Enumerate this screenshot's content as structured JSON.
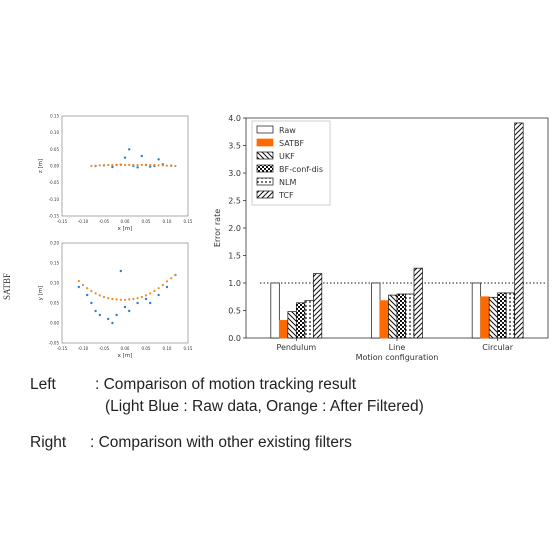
{
  "side_label": "SATBF",
  "captions": {
    "left_key": "Left",
    "left_line1": ": Comparison of motion tracking result",
    "left_line2": "(Light Blue : Raw data, Orange : After Filtered)",
    "right_key": "Right",
    "right_line1": ": Comparison with other existing filters"
  },
  "colors": {
    "raw_points": "#2a7fd4",
    "filtered_points": "#f08a1c",
    "satbf_bar": "#ff6a00"
  },
  "chart_data": [
    {
      "type": "scatter",
      "xlabel": "x [m]",
      "ylabel": "z [m]",
      "xlim": [
        -0.15,
        0.15
      ],
      "ylim": [
        -0.15,
        0.15
      ],
      "xticks": [
        "-0.15",
        "-0.10",
        "-0.05",
        "0.00",
        "0.05",
        "0.10",
        "0.15"
      ],
      "yticks": [
        "0.15",
        "0.10",
        "0.05",
        "0.00",
        "-0.05",
        "-0.10",
        "-0.15"
      ],
      "series": [
        {
          "name": "Raw",
          "x": [
            -0.07,
            -0.05,
            -0.03,
            -0.01,
            0.01,
            0.02,
            0.03,
            0.05,
            0.07,
            0.09,
            0.11,
            0.0,
            0.04,
            0.08,
            -0.02,
            0.06
          ],
          "y": [
            0.0,
            0.002,
            -0.003,
            0.004,
            0.05,
            0.0,
            -0.004,
            0.003,
            0.0,
            0.005,
            0.001,
            0.025,
            0.03,
            0.02,
            0.003,
            -0.002
          ]
        },
        {
          "name": "Filtered",
          "x": [
            -0.08,
            -0.07,
            -0.06,
            -0.05,
            -0.04,
            -0.03,
            -0.02,
            -0.01,
            0.0,
            0.01,
            0.02,
            0.03,
            0.04,
            0.05,
            0.06,
            0.07,
            0.08,
            0.09,
            0.1,
            0.11,
            0.12
          ],
          "y": [
            0.0,
            0.001,
            0.002,
            0.002,
            0.003,
            0.003,
            0.003,
            0.003,
            0.003,
            0.003,
            0.003,
            0.003,
            0.003,
            0.003,
            0.003,
            0.003,
            0.002,
            0.002,
            0.001,
            0.001,
            0.0
          ]
        }
      ]
    },
    {
      "type": "scatter",
      "xlabel": "x [m]",
      "ylabel": "y [m]",
      "xlim": [
        -0.15,
        0.15
      ],
      "ylim": [
        -0.05,
        0.2
      ],
      "xticks": [
        "-0.15",
        "-0.10",
        "-0.05",
        "0.00",
        "0.05",
        "0.10",
        "0.15"
      ],
      "yticks": [
        "0.20",
        "0.15",
        "0.10",
        "0.05",
        "0.00",
        "-0.05"
      ],
      "series": [
        {
          "name": "Raw",
          "x": [
            -0.11,
            -0.09,
            -0.08,
            -0.07,
            -0.06,
            -0.04,
            -0.03,
            -0.02,
            0.0,
            0.01,
            0.03,
            0.05,
            0.06,
            0.08,
            0.1,
            0.12,
            -0.01
          ],
          "y": [
            0.09,
            0.07,
            0.05,
            0.03,
            0.02,
            0.01,
            0.0,
            0.02,
            0.04,
            0.03,
            0.05,
            0.06,
            0.05,
            0.07,
            0.09,
            0.12,
            0.13
          ]
        },
        {
          "name": "Filtered",
          "x": [
            -0.11,
            -0.1,
            -0.09,
            -0.08,
            -0.07,
            -0.06,
            -0.05,
            -0.04,
            -0.03,
            -0.02,
            -0.01,
            0.0,
            0.01,
            0.02,
            0.03,
            0.04,
            0.05,
            0.06,
            0.07,
            0.08,
            0.09,
            0.1,
            0.11,
            0.12
          ],
          "y": [
            0.105,
            0.095,
            0.087,
            0.08,
            0.074,
            0.069,
            0.065,
            0.062,
            0.06,
            0.059,
            0.058,
            0.058,
            0.059,
            0.06,
            0.062,
            0.065,
            0.069,
            0.074,
            0.08,
            0.087,
            0.095,
            0.104,
            0.112,
            0.12
          ]
        }
      ]
    },
    {
      "type": "bar",
      "xlabel": "Motion configuration",
      "ylabel": "Error rate",
      "ylim": [
        0,
        4.0
      ],
      "yticks": [
        "0.0",
        "0.5",
        "1.0",
        "1.5",
        "2.0",
        "2.5",
        "3.0",
        "3.5",
        "4.0"
      ],
      "reference_line": 1.0,
      "legend_position": "top-left",
      "categories": [
        "Pendulum",
        "Line",
        "Circular"
      ],
      "series": [
        {
          "name": "Raw",
          "pattern": "white",
          "values": [
            1.0,
            1.0,
            1.0
          ]
        },
        {
          "name": "SATBF",
          "pattern": "orange",
          "values": [
            0.32,
            0.68,
            0.75
          ]
        },
        {
          "name": "UKF",
          "pattern": "backslash",
          "values": [
            0.48,
            0.78,
            0.74
          ]
        },
        {
          "name": "BF-conf-dis",
          "pattern": "checker",
          "values": [
            0.64,
            0.8,
            0.82
          ]
        },
        {
          "name": "NLM",
          "pattern": "dots",
          "values": [
            0.68,
            0.8,
            0.82
          ]
        },
        {
          "name": "TCF",
          "pattern": "slash",
          "values": [
            1.17,
            1.27,
            3.91
          ]
        }
      ]
    }
  ]
}
